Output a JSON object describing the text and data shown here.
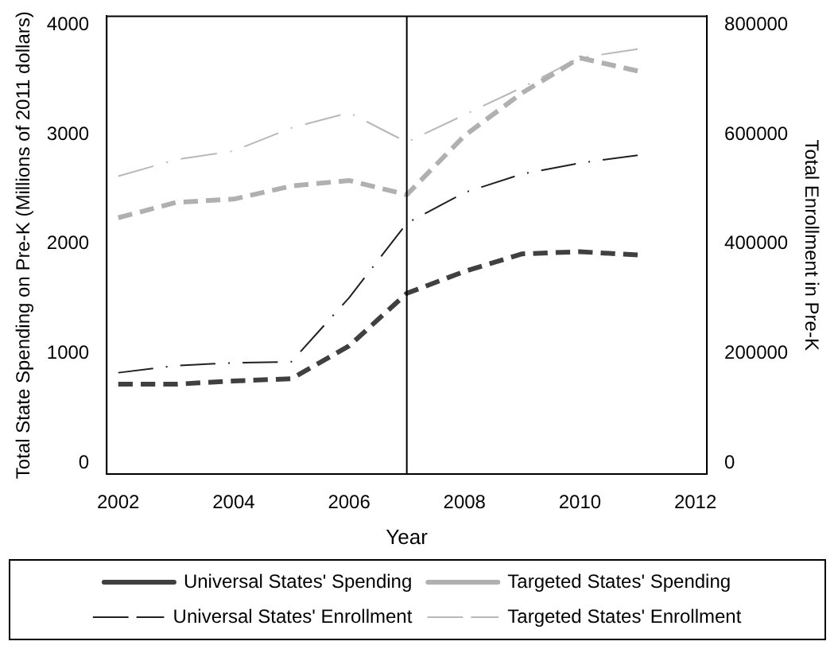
{
  "chart_data": {
    "type": "line",
    "xlabel": "Year",
    "ylabel": "Total State Spending on Pre-K (Millions of 2011 dollars)",
    "y2label": "Total Enrollment in Pre-K",
    "x": [
      2002,
      2003,
      2004,
      2005,
      2006,
      2007,
      2008,
      2009,
      2010,
      2011
    ],
    "xlim": [
      2001.8,
      2012.2
    ],
    "xticks": [
      2002,
      2004,
      2006,
      2008,
      2010,
      2012
    ],
    "ylim": [
      -100,
      4080
    ],
    "yticks": [
      0,
      1000,
      2000,
      3000,
      4000
    ],
    "y2lim": [
      -20000,
      816000
    ],
    "y2ticks": [
      0,
      200000,
      400000,
      600000,
      800000
    ],
    "series": [
      {
        "name": "Universal States' Spending",
        "color": "#404040",
        "line_style": "dashed",
        "values": [
          720,
          720,
          750,
          770,
          1070,
          1550,
          1750,
          1910,
          1930,
          1900
        ]
      },
      {
        "name": "Targeted States' Spending",
        "color": "#b0b0b0",
        "line_style": "dashed",
        "values": [
          2240,
          2380,
          2410,
          2530,
          2580,
          2450,
          2990,
          3380,
          3700,
          3580
        ]
      },
      {
        "name": "Universal States' Enrollment",
        "color": "#202020",
        "line_style": "dashed",
        "axis": "y2",
        "values": [
          165000,
          178000,
          183000,
          185000,
          302000,
          438000,
          494000,
          528000,
          548000,
          562000
        ]
      },
      {
        "name": "Targeted States' Enrollment",
        "color": "#b8b8b8",
        "line_style": "dashed",
        "axis": "y2",
        "values": [
          524000,
          554000,
          570000,
          612000,
          640000,
          586000,
          636000,
          686000,
          740000,
          756000
        ]
      }
    ],
    "ref_lines": [
      {
        "axis": "x",
        "value": 2007,
        "color": "#000000"
      }
    ],
    "marker": "none",
    "grid": false,
    "legend": "bottom"
  }
}
